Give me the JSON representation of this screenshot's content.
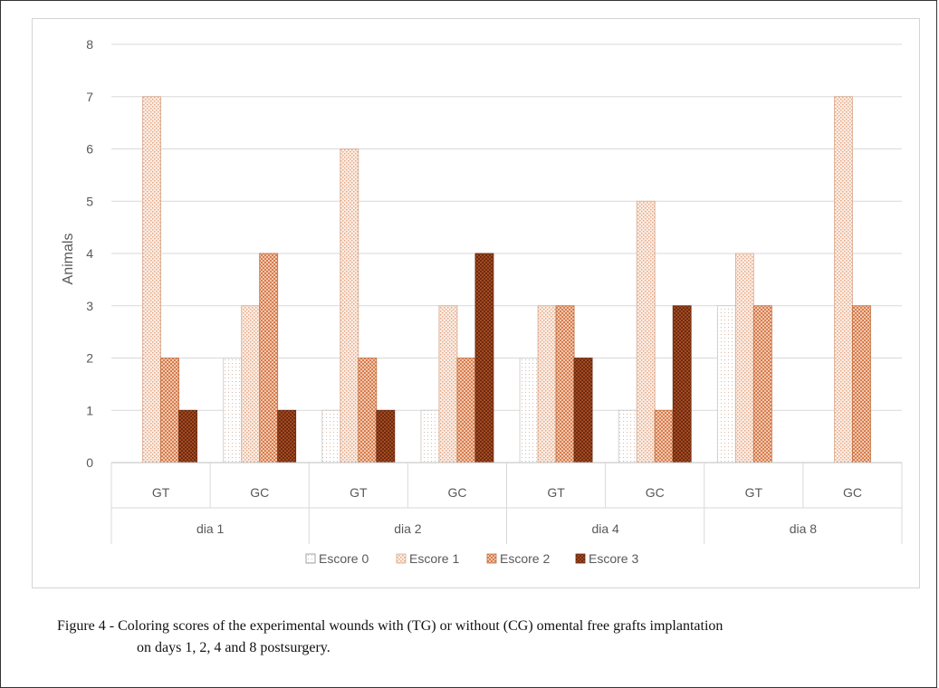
{
  "chart_data": {
    "type": "bar",
    "ylabel": "Animals",
    "xlabel": "",
    "title": "",
    "ylim": [
      0,
      8
    ],
    "yticks": [
      "0",
      "1",
      "2",
      "3",
      "4",
      "5",
      "6",
      "7",
      "8"
    ],
    "legend_position": "bottom",
    "groups": [
      {
        "label": "dia 1",
        "categories": [
          "GT",
          "GC"
        ]
      },
      {
        "label": "dia 2",
        "categories": [
          "GT",
          "GC"
        ]
      },
      {
        "label": "dia 4",
        "categories": [
          "GT",
          "GC"
        ]
      },
      {
        "label": "dia 8",
        "categories": [
          "GT",
          "GC"
        ]
      }
    ],
    "categories": [
      "GT",
      "GC",
      "GT",
      "GC",
      "GT",
      "GC",
      "GT",
      "GC"
    ],
    "series": [
      {
        "name": "Escore 0",
        "color": "#ffffff",
        "values": [
          0,
          2,
          1,
          1,
          2,
          1,
          3,
          0
        ]
      },
      {
        "name": "Escore 1",
        "color": "#f7e1d4",
        "values": [
          7,
          3,
          6,
          3,
          3,
          5,
          4,
          7
        ]
      },
      {
        "name": "Escore 2",
        "color": "#e7a27e",
        "values": [
          2,
          4,
          2,
          2,
          3,
          1,
          3,
          3
        ]
      },
      {
        "name": "Escore 3",
        "color": "#8a3b1a",
        "values": [
          1,
          1,
          1,
          4,
          2,
          3,
          0,
          0
        ]
      }
    ]
  },
  "caption": {
    "line1": "Figure 4 - Coloring scores of the experimental wounds with (TG) or without (CG) omental free grafts implantation",
    "line2": "on days 1, 2, 4 and 8 postsurgery."
  }
}
